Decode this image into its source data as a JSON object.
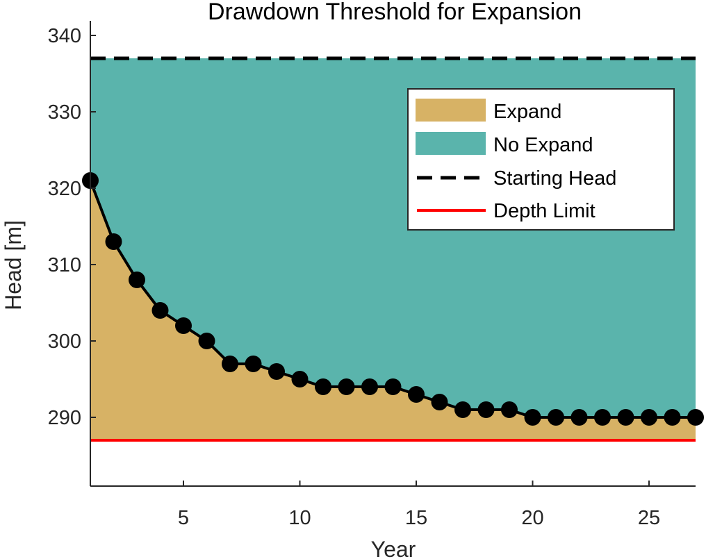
{
  "chart_data": {
    "type": "area",
    "title": "Drawdown Threshold for Expansion",
    "xlabel": "Year",
    "ylabel": "Head [m]",
    "xlim": [
      1,
      27
    ],
    "ylim": [
      281,
      341
    ],
    "xticks": [
      5,
      10,
      15,
      20,
      25
    ],
    "yticks": [
      290,
      300,
      310,
      320,
      330,
      340
    ],
    "x": [
      1,
      2,
      3,
      4,
      5,
      6,
      7,
      8,
      9,
      10,
      11,
      12,
      13,
      14,
      15,
      16,
      17,
      18,
      19,
      20,
      21,
      22,
      23,
      24,
      25,
      26,
      27
    ],
    "threshold": [
      321,
      313,
      308,
      304,
      302,
      300,
      297,
      297,
      296,
      295,
      294,
      294,
      294,
      294,
      293,
      292,
      291,
      291,
      291,
      290,
      290,
      290,
      290,
      290,
      290,
      290,
      290
    ],
    "starting_head": 337,
    "depth_limit": 287,
    "legend": {
      "position": "top-right",
      "entries": [
        "Expand",
        "No Expand",
        "Starting Head",
        "Depth Limit"
      ]
    },
    "colors": {
      "expand": "#D7B265",
      "no_expand": "#5AB4AC",
      "starting_head": "#000000",
      "depth_limit": "#FF0000",
      "marker": "#000000"
    },
    "grid": false
  }
}
